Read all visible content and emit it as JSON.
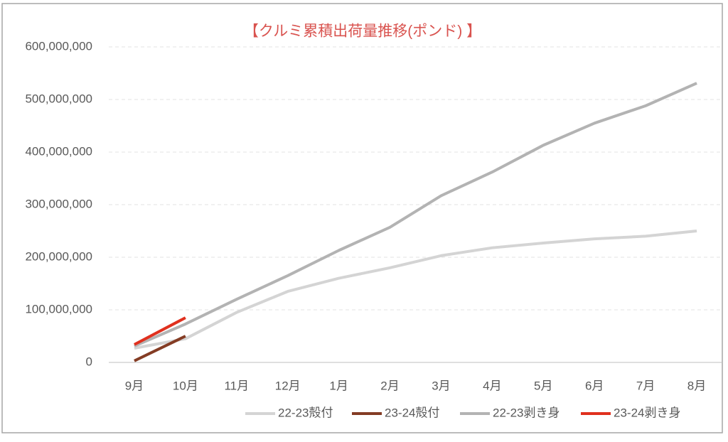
{
  "chart_data": {
    "type": "line",
    "title": "【クルミ累積出荷量推移(ポンド) 】",
    "categories": [
      "9月",
      "10月",
      "11月",
      "12月",
      "1月",
      "2月",
      "3月",
      "4月",
      "5月",
      "6月",
      "7月",
      "8月"
    ],
    "series": [
      {
        "name": "22-23殻付",
        "color": "#d4d4d4",
        "values": [
          27000000,
          45000000,
          95000000,
          135000000,
          160000000,
          180000000,
          203000000,
          218000000,
          227000000,
          235000000,
          240000000,
          250000000
        ]
      },
      {
        "name": "23-24殻付",
        "color": "#843c24",
        "values": [
          3000000,
          50000000,
          null,
          null,
          null,
          null,
          null,
          null,
          null,
          null,
          null,
          null
        ]
      },
      {
        "name": "22-23剥き身",
        "color": "#b3b3b3",
        "values": [
          31000000,
          73000000,
          120000000,
          165000000,
          213000000,
          257000000,
          317000000,
          362000000,
          413000000,
          455000000,
          488000000,
          531000000
        ]
      },
      {
        "name": "23-24剥き身",
        "color": "#e0301e",
        "values": [
          34000000,
          85000000,
          null,
          null,
          null,
          null,
          null,
          null,
          null,
          null,
          null,
          null
        ]
      }
    ],
    "ylim": [
      0,
      600000000
    ],
    "yticks": [
      0,
      {
        "value": 100000000,
        "label": "100,000,000"
      },
      {
        "value": 200000000,
        "label": "200,000,000"
      },
      {
        "value": 300000000,
        "label": "300,000,000"
      },
      {
        "value": 400000000,
        "label": "400,000,000"
      },
      {
        "value": 500000000,
        "label": "500,000,000"
      },
      {
        "value": 600000000,
        "label": "600,000,000"
      }
    ],
    "grid": true,
    "legend": "bottom"
  }
}
